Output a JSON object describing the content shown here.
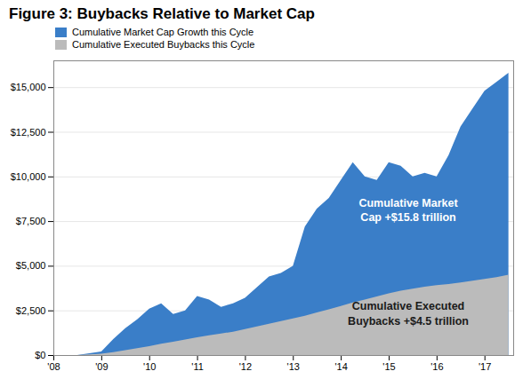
{
  "chart_data": {
    "type": "area",
    "title": "Figure 3: Buybacks Relative to Market Cap",
    "x": [
      2008.0,
      2008.5,
      2009.0,
      2009.25,
      2009.5,
      2009.75,
      2010.0,
      2010.25,
      2010.5,
      2010.75,
      2011.0,
      2011.25,
      2011.5,
      2011.75,
      2012.0,
      2012.25,
      2012.5,
      2012.75,
      2013.0,
      2013.25,
      2013.5,
      2013.75,
      2014.0,
      2014.25,
      2014.5,
      2014.75,
      2015.0,
      2015.25,
      2015.5,
      2015.75,
      2016.0,
      2016.25,
      2016.5,
      2016.75,
      2017.0,
      2017.25,
      2017.5
    ],
    "series": [
      {
        "name": "Cumulative Market Cap Growth this Cycle",
        "color": "#3A7EC8",
        "values": [
          0,
          0,
          200,
          900,
          1500,
          2000,
          2600,
          2900,
          2300,
          2500,
          3300,
          3100,
          2700,
          2900,
          3200,
          3800,
          4400,
          4600,
          5000,
          7200,
          8200,
          8800,
          9800,
          10800,
          10000,
          9800,
          10800,
          10600,
          10000,
          10200,
          10000,
          11200,
          12800,
          13800,
          14800,
          15300,
          15800
        ]
      },
      {
        "name": "Cumulative Executed Buybacks this Cycle",
        "color": "#BBBBBB",
        "values": [
          0,
          0,
          80,
          160,
          270,
          380,
          500,
          630,
          750,
          870,
          1000,
          1100,
          1200,
          1310,
          1450,
          1600,
          1750,
          1900,
          2050,
          2200,
          2380,
          2560,
          2750,
          2950,
          3100,
          3280,
          3450,
          3600,
          3720,
          3830,
          3920,
          3980,
          4060,
          4160,
          4260,
          4360,
          4500
        ]
      }
    ],
    "xlim": [
      2008,
      2017.6
    ],
    "xticks": [
      {
        "value": 2008,
        "label": "'08"
      },
      {
        "value": 2009,
        "label": "'09"
      },
      {
        "value": 2010,
        "label": "'10"
      },
      {
        "value": 2011,
        "label": "'11"
      },
      {
        "value": 2012,
        "label": "'12"
      },
      {
        "value": 2013,
        "label": "'13"
      },
      {
        "value": 2014,
        "label": "'14"
      },
      {
        "value": 2015,
        "label": "'15"
      },
      {
        "value": 2016,
        "label": "'16"
      },
      {
        "value": 2017,
        "label": "'17"
      }
    ],
    "ylim": [
      0,
      16500
    ],
    "yticks": [
      {
        "value": 0,
        "label": "$0"
      },
      {
        "value": 2500,
        "label": "$2,500"
      },
      {
        "value": 5000,
        "label": "$5,000"
      },
      {
        "value": 7500,
        "label": "$7,500"
      },
      {
        "value": 10000,
        "label": "$10,000"
      },
      {
        "value": 12500,
        "label": "$12,500"
      },
      {
        "value": 15000,
        "label": "$15,000"
      }
    ],
    "grid": true,
    "legend": "upper left",
    "annotations": [
      {
        "text": "Cumulative Market\nCap +$15.8 trillion",
        "x": 2015.4,
        "y": 8200,
        "color": "#FFFFFF"
      },
      {
        "text": "Cumulative Executed\nBuybacks +$4.5 trillion",
        "x": 2015.4,
        "y": 2400,
        "color": "#1a1a1a"
      }
    ]
  }
}
